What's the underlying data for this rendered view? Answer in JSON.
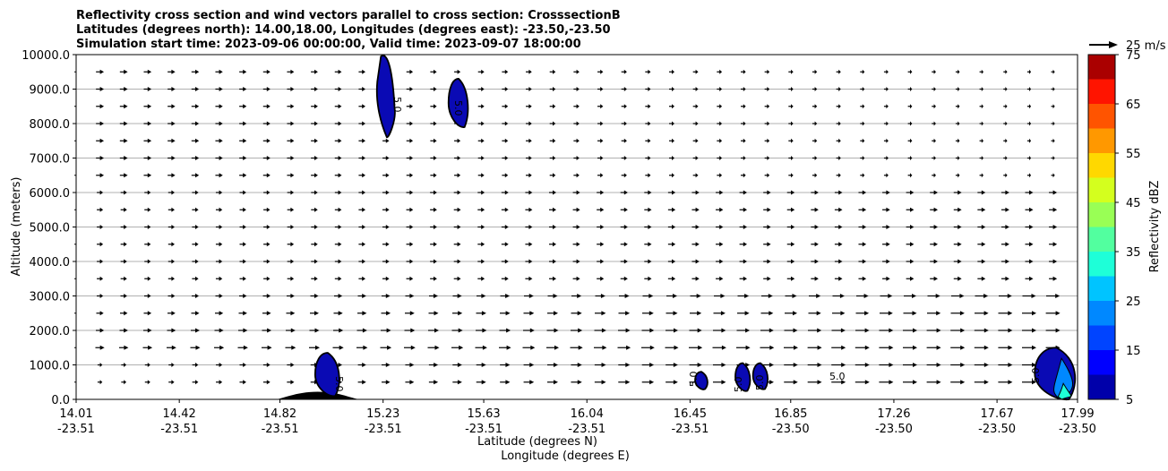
{
  "chart_data": {
    "type": "cross-section",
    "title_lines": [
      "Reflectivity cross section and wind vectors parallel to cross section: CrosssectionB",
      "Latitudes (degrees north): 14.00,18.00, Longitudes (degrees east): -23.50,-23.50",
      "Simulation start time: 2023-09-06 00:00:00, Valid time: 2023-09-07 18:00:00"
    ],
    "xlabel_lat": "Latitude (degrees N)",
    "xlabel_lon": "Longitude (degrees E)",
    "ylabel": "Altitude (meters)",
    "xlim": [
      14.01,
      17.99
    ],
    "ylim": [
      0,
      10000
    ],
    "x_ticks": [
      {
        "lat": "14.01",
        "lon": "-23.51"
      },
      {
        "lat": "14.42",
        "lon": "-23.51"
      },
      {
        "lat": "14.82",
        "lon": "-23.51"
      },
      {
        "lat": "15.23",
        "lon": "-23.51"
      },
      {
        "lat": "15.63",
        "lon": "-23.51"
      },
      {
        "lat": "16.04",
        "lon": "-23.51"
      },
      {
        "lat": "16.45",
        "lon": "-23.51"
      },
      {
        "lat": "16.85",
        "lon": "-23.50"
      },
      {
        "lat": "17.26",
        "lon": "-23.50"
      },
      {
        "lat": "17.67",
        "lon": "-23.50"
      },
      {
        "lat": "17.99",
        "lon": "-23.50"
      }
    ],
    "y_ticks": [
      "0.0",
      "1000.0",
      "2000.0",
      "3000.0",
      "4000.0",
      "5000.0",
      "6000.0",
      "7000.0",
      "8000.0",
      "9000.0",
      "10000.0"
    ],
    "grid": "horizontal",
    "colorbar": {
      "label": "Reflectivity dBZ",
      "levels": [
        5,
        10,
        15,
        20,
        25,
        30,
        35,
        40,
        45,
        50,
        55,
        60,
        65,
        70,
        75
      ],
      "tick_labels": [
        "5",
        "15",
        "25",
        "35",
        "45",
        "55",
        "65",
        "75"
      ],
      "colors": [
        "#0000aa",
        "#0000ff",
        "#0044ff",
        "#0088ff",
        "#00c4ff",
        "#1effd8",
        "#52ff9f",
        "#99ff55",
        "#d4ff1e",
        "#ffd800",
        "#ff9800",
        "#ff5400",
        "#ff1400",
        "#aa0000"
      ]
    },
    "quiver_key": {
      "label": "25 m/s",
      "magnitude": 25
    },
    "contour_label": "5.0",
    "cells": [
      {
        "lat_range": [
          15.2,
          15.29
        ],
        "alt_range": [
          7600,
          10000
        ]
      },
      {
        "lat_range": [
          15.49,
          15.57
        ],
        "alt_range": [
          7900,
          9300
        ]
      },
      {
        "lat_range": [
          14.96,
          15.06
        ],
        "alt_range": [
          100,
          1350
        ]
      },
      {
        "lat_range": [
          16.47,
          16.52
        ],
        "alt_range": [
          300,
          800
        ]
      },
      {
        "lat_range": [
          16.63,
          16.69
        ],
        "alt_range": [
          250,
          1050
        ]
      },
      {
        "lat_range": [
          16.7,
          16.76
        ],
        "alt_range": [
          300,
          1050
        ]
      },
      {
        "lat_range": [
          17.82,
          17.99
        ],
        "alt_range": [
          0,
          1500
        ]
      }
    ],
    "terrain": {
      "lat_range": [
        14.8,
        15.14
      ],
      "peak_alt": 220
    }
  }
}
